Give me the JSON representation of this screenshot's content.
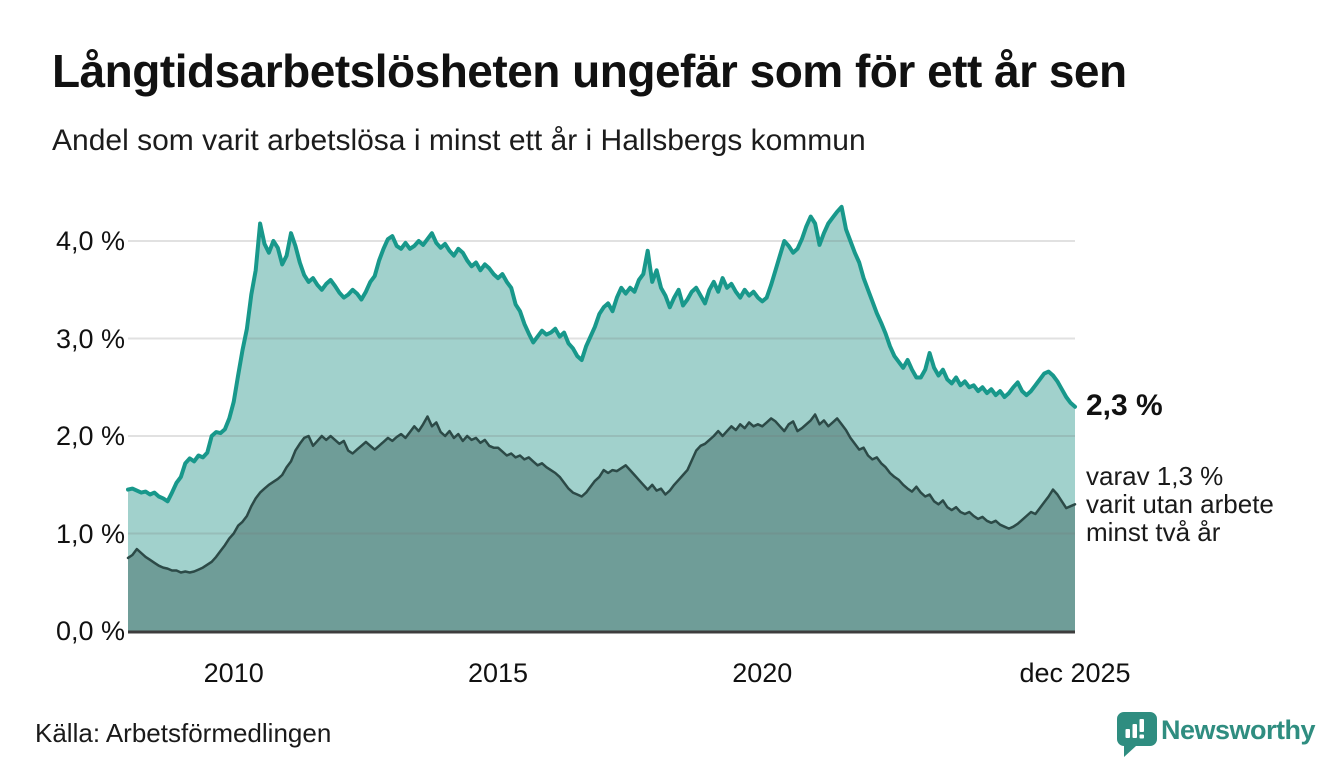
{
  "header": {
    "title": "Långtidsarbetslösheten ungefär som för ett år sen",
    "subtitle": "Andel som varit arbetslösa i minst ett år i Hallsbergs kommun"
  },
  "chart_data": {
    "type": "area",
    "title": "Långtidsarbetslösheten ungefär som för ett år sen",
    "subtitle": "Andel som varit arbetslösa i minst ett år i Hallsbergs kommun",
    "unit": "%",
    "frequency": "monthly",
    "x_start": "2008-01",
    "x_end": "2025-12",
    "ylim": [
      0,
      4.5
    ],
    "grid": true,
    "grid_color": "#787878",
    "axis_color": "#3d3d3d",
    "y_ticks": [
      {
        "value": 0,
        "label": "0,0 %"
      },
      {
        "value": 1,
        "label": "1,0 %"
      },
      {
        "value": 2,
        "label": "2,0 %"
      },
      {
        "value": 3,
        "label": "3,0 %"
      },
      {
        "value": 4,
        "label": "4,0 %"
      }
    ],
    "x_ticks": [
      {
        "label": "2010",
        "month_index": 24
      },
      {
        "label": "2015",
        "month_index": 84
      },
      {
        "label": "2020",
        "month_index": 144
      },
      {
        "label": "dec 2025",
        "month_index": 215
      }
    ],
    "series": [
      {
        "name": "Andel arbetslösa minst ett år",
        "line_color": "#18988b",
        "fill_color": "#a1d1cc",
        "line_width": 4,
        "last_value": 2.3,
        "values": [
          1.45,
          1.46,
          1.44,
          1.42,
          1.43,
          1.4,
          1.42,
          1.38,
          1.36,
          1.33,
          1.42,
          1.52,
          1.58,
          1.72,
          1.77,
          1.74,
          1.8,
          1.78,
          1.83,
          2.0,
          2.04,
          2.03,
          2.07,
          2.18,
          2.35,
          2.62,
          2.88,
          3.1,
          3.45,
          3.7,
          4.18,
          3.97,
          3.88,
          4.0,
          3.93,
          3.76,
          3.85,
          4.08,
          3.95,
          3.78,
          3.65,
          3.58,
          3.62,
          3.55,
          3.5,
          3.56,
          3.6,
          3.54,
          3.47,
          3.42,
          3.45,
          3.5,
          3.46,
          3.4,
          3.48,
          3.58,
          3.64,
          3.8,
          3.92,
          4.02,
          4.05,
          3.95,
          3.92,
          3.98,
          3.92,
          3.95,
          4.0,
          3.96,
          4.02,
          4.08,
          3.98,
          3.93,
          3.97,
          3.9,
          3.85,
          3.92,
          3.88,
          3.8,
          3.74,
          3.78,
          3.7,
          3.76,
          3.72,
          3.66,
          3.62,
          3.66,
          3.58,
          3.52,
          3.35,
          3.28,
          3.15,
          3.05,
          2.96,
          3.02,
          3.08,
          3.04,
          3.06,
          3.1,
          3.02,
          3.06,
          2.95,
          2.9,
          2.82,
          2.78,
          2.92,
          3.02,
          3.12,
          3.25,
          3.32,
          3.36,
          3.28,
          3.42,
          3.52,
          3.46,
          3.52,
          3.48,
          3.6,
          3.66,
          3.9,
          3.58,
          3.7,
          3.52,
          3.44,
          3.32,
          3.42,
          3.5,
          3.34,
          3.4,
          3.48,
          3.52,
          3.44,
          3.36,
          3.5,
          3.58,
          3.48,
          3.62,
          3.52,
          3.56,
          3.48,
          3.42,
          3.5,
          3.44,
          3.48,
          3.42,
          3.38,
          3.42,
          3.55,
          3.7,
          3.85,
          4.0,
          3.95,
          3.88,
          3.92,
          4.02,
          4.15,
          4.25,
          4.18,
          3.96,
          4.08,
          4.18,
          4.24,
          4.3,
          4.35,
          4.12,
          4.0,
          3.88,
          3.78,
          3.62,
          3.5,
          3.38,
          3.26,
          3.16,
          3.05,
          2.92,
          2.82,
          2.76,
          2.7,
          2.78,
          2.68,
          2.6,
          2.6,
          2.68,
          2.85,
          2.7,
          2.62,
          2.68,
          2.58,
          2.54,
          2.6,
          2.52,
          2.56,
          2.5,
          2.52,
          2.46,
          2.5,
          2.44,
          2.48,
          2.42,
          2.46,
          2.4,
          2.44,
          2.5,
          2.55,
          2.46,
          2.42,
          2.46,
          2.52,
          2.58,
          2.64,
          2.66,
          2.62,
          2.56,
          2.48,
          2.4,
          2.34,
          2.3
        ]
      },
      {
        "name": "Andel arbetslösa minst två år",
        "line_color": "#2c4a47",
        "fill_color": "#6f9d98",
        "line_width": 2.5,
        "last_value": 1.3,
        "values": [
          0.75,
          0.78,
          0.84,
          0.8,
          0.76,
          0.73,
          0.7,
          0.67,
          0.65,
          0.64,
          0.62,
          0.62,
          0.6,
          0.61,
          0.6,
          0.61,
          0.63,
          0.65,
          0.68,
          0.71,
          0.76,
          0.82,
          0.88,
          0.95,
          1.0,
          1.08,
          1.12,
          1.18,
          1.28,
          1.36,
          1.42,
          1.46,
          1.5,
          1.53,
          1.56,
          1.6,
          1.68,
          1.74,
          1.85,
          1.92,
          1.98,
          2.0,
          1.9,
          1.95,
          2.0,
          1.96,
          2.0,
          1.96,
          1.92,
          1.95,
          1.85,
          1.82,
          1.86,
          1.9,
          1.94,
          1.9,
          1.86,
          1.9,
          1.94,
          1.98,
          1.95,
          1.99,
          2.02,
          1.98,
          2.04,
          2.1,
          2.05,
          2.12,
          2.2,
          2.1,
          2.14,
          2.04,
          2.0,
          2.05,
          1.98,
          2.02,
          1.95,
          2.0,
          1.96,
          1.98,
          1.93,
          1.96,
          1.9,
          1.88,
          1.88,
          1.84,
          1.8,
          1.82,
          1.78,
          1.8,
          1.76,
          1.78,
          1.74,
          1.7,
          1.72,
          1.68,
          1.65,
          1.62,
          1.58,
          1.52,
          1.46,
          1.42,
          1.4,
          1.38,
          1.42,
          1.48,
          1.54,
          1.58,
          1.65,
          1.62,
          1.65,
          1.64,
          1.67,
          1.7,
          1.65,
          1.6,
          1.55,
          1.5,
          1.45,
          1.5,
          1.44,
          1.46,
          1.4,
          1.44,
          1.5,
          1.55,
          1.6,
          1.65,
          1.75,
          1.85,
          1.9,
          1.92,
          1.96,
          2.0,
          2.05,
          2.0,
          2.05,
          2.1,
          2.06,
          2.12,
          2.08,
          2.14,
          2.1,
          2.12,
          2.1,
          2.14,
          2.18,
          2.15,
          2.1,
          2.05,
          2.12,
          2.15,
          2.05,
          2.08,
          2.12,
          2.16,
          2.22,
          2.12,
          2.16,
          2.1,
          2.14,
          2.18,
          2.12,
          2.06,
          1.98,
          1.92,
          1.86,
          1.88,
          1.8,
          1.76,
          1.78,
          1.72,
          1.68,
          1.62,
          1.58,
          1.55,
          1.5,
          1.46,
          1.43,
          1.48,
          1.42,
          1.38,
          1.4,
          1.33,
          1.3,
          1.34,
          1.27,
          1.24,
          1.27,
          1.22,
          1.2,
          1.22,
          1.18,
          1.15,
          1.17,
          1.13,
          1.11,
          1.13,
          1.09,
          1.07,
          1.05,
          1.07,
          1.1,
          1.14,
          1.18,
          1.22,
          1.2,
          1.26,
          1.32,
          1.38,
          1.45,
          1.4,
          1.33,
          1.26,
          1.28,
          1.3
        ]
      }
    ],
    "annotations": {
      "end_value_primary": "2,3 %",
      "end_note_lines": [
        "varav 1,3 %",
        "varit utan arbete",
        "minst två år"
      ]
    }
  },
  "footer": {
    "source": "Källa: Arbetsförmedlingen",
    "brand_name": "Newsworthy",
    "brand_color": "#2f8d80"
  }
}
